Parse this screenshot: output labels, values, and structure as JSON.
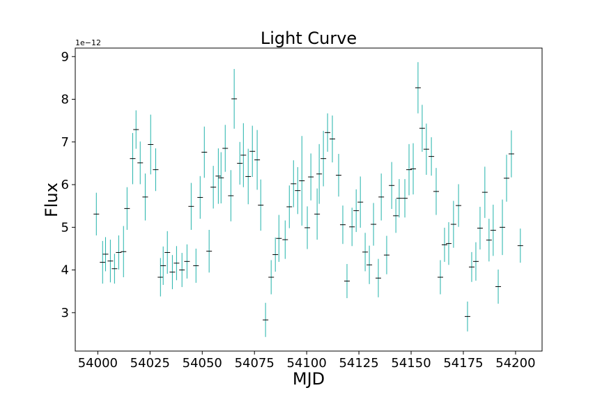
{
  "chart_data": {
    "type": "errorbar",
    "title": "Light Curve",
    "x_label": "MJD",
    "y_label": "Flux",
    "offset_label": "1e−12",
    "x": [
      53999.3,
      54002.3,
      54003.7,
      54006.0,
      54008.0,
      54010.0,
      54012.3,
      54014.0,
      54016.7,
      54018.3,
      54020.3,
      54022.7,
      54025.3,
      54027.7,
      54030.0,
      54031.3,
      54033.3,
      54035.7,
      54037.7,
      54040.3,
      54042.7,
      54044.7,
      54047.0,
      54049.0,
      54051.0,
      54053.3,
      54055.3,
      54057.7,
      54059.0,
      54061.0,
      54063.7,
      54065.3,
      54068.0,
      54069.7,
      54072.0,
      54074.0,
      54076.3,
      54078.0,
      54080.3,
      54083.0,
      54085.0,
      54086.7,
      54089.7,
      54091.7,
      54093.7,
      54095.7,
      54097.7,
      54100.3,
      54102.0,
      54105.0,
      54106.0,
      54108.0,
      54110.0,
      54112.3,
      54115.3,
      54117.3,
      54119.3,
      54121.7,
      54123.7,
      54125.7,
      54128.0,
      54130.0,
      54132.0,
      54134.3,
      54135.7,
      54138.3,
      54140.7,
      54142.7,
      54144.3,
      54147.0,
      54149.0,
      54151.0,
      54153.3,
      54155.3,
      54157.3,
      54159.7,
      54162.0,
      54164.0,
      54166.0,
      54168.0,
      54170.3,
      54172.7,
      54177.0,
      54179.0,
      54181.0,
      54183.0,
      54185.3,
      54187.3,
      54189.3,
      54191.7,
      54193.7,
      54195.7,
      54198.0,
      54202.3
    ],
    "values": [
      5.31,
      4.18,
      4.37,
      4.21,
      4.03,
      4.41,
      4.43,
      5.44,
      6.61,
      7.29,
      6.51,
      5.71,
      6.94,
      6.35,
      3.83,
      4.1,
      4.41,
      3.95,
      4.16,
      4.0,
      4.2,
      5.49,
      4.1,
      5.7,
      6.76,
      4.44,
      5.94,
      6.2,
      6.16,
      6.85,
      5.74,
      8.01,
      6.5,
      6.69,
      6.19,
      6.78,
      6.58,
      5.52,
      2.83,
      3.83,
      4.36,
      4.74,
      4.71,
      5.48,
      6.02,
      5.86,
      6.09,
      4.99,
      6.18,
      5.31,
      6.25,
      6.61,
      7.22,
      7.07,
      6.22,
      5.06,
      3.74,
      5.01,
      5.39,
      5.59,
      4.42,
      4.12,
      5.07,
      3.81,
      5.71,
      4.35,
      5.98,
      5.27,
      5.68,
      5.68,
      6.35,
      6.37,
      8.27,
      7.32,
      6.83,
      6.66,
      5.84,
      3.83,
      4.59,
      4.62,
      5.07,
      5.51,
      2.91,
      4.07,
      4.2,
      4.98,
      5.82,
      4.7,
      4.93,
      3.61,
      5.0,
      6.15,
      6.72,
      4.57
    ],
    "errors": [
      0.5,
      0.5,
      0.4,
      0.5,
      0.35,
      0.4,
      0.6,
      0.5,
      0.6,
      0.45,
      0.5,
      0.55,
      0.7,
      0.5,
      0.45,
      0.45,
      0.5,
      0.4,
      0.4,
      0.4,
      0.4,
      0.55,
      0.4,
      0.5,
      0.6,
      0.5,
      0.5,
      0.65,
      0.6,
      0.55,
      0.6,
      0.7,
      0.5,
      0.75,
      0.65,
      0.6,
      0.7,
      0.6,
      0.4,
      0.4,
      0.4,
      0.55,
      0.45,
      0.5,
      0.55,
      0.55,
      1.05,
      0.5,
      0.55,
      0.6,
      0.7,
      0.65,
      0.45,
      0.55,
      0.5,
      0.45,
      0.4,
      0.45,
      0.5,
      0.6,
      0.45,
      0.45,
      0.5,
      0.45,
      0.55,
      0.45,
      0.55,
      0.4,
      0.45,
      0.45,
      0.6,
      0.6,
      0.6,
      0.55,
      0.6,
      0.45,
      0.55,
      0.4,
      0.4,
      0.5,
      0.55,
      0.5,
      0.35,
      0.35,
      0.45,
      0.5,
      0.6,
      0.5,
      0.6,
      0.4,
      0.65,
      0.55,
      0.55,
      0.4
    ],
    "color": "#20b2aa",
    "marker_color": "#000000",
    "xlim": [
      53989.2,
      54212.7
    ],
    "ylim": [
      2.1,
      9.2
    ],
    "xticks": [
      54000,
      54025,
      54050,
      54075,
      54100,
      54125,
      54150,
      54175,
      54200
    ],
    "yticks": [
      3,
      4,
      5,
      6,
      7,
      8,
      9
    ]
  }
}
